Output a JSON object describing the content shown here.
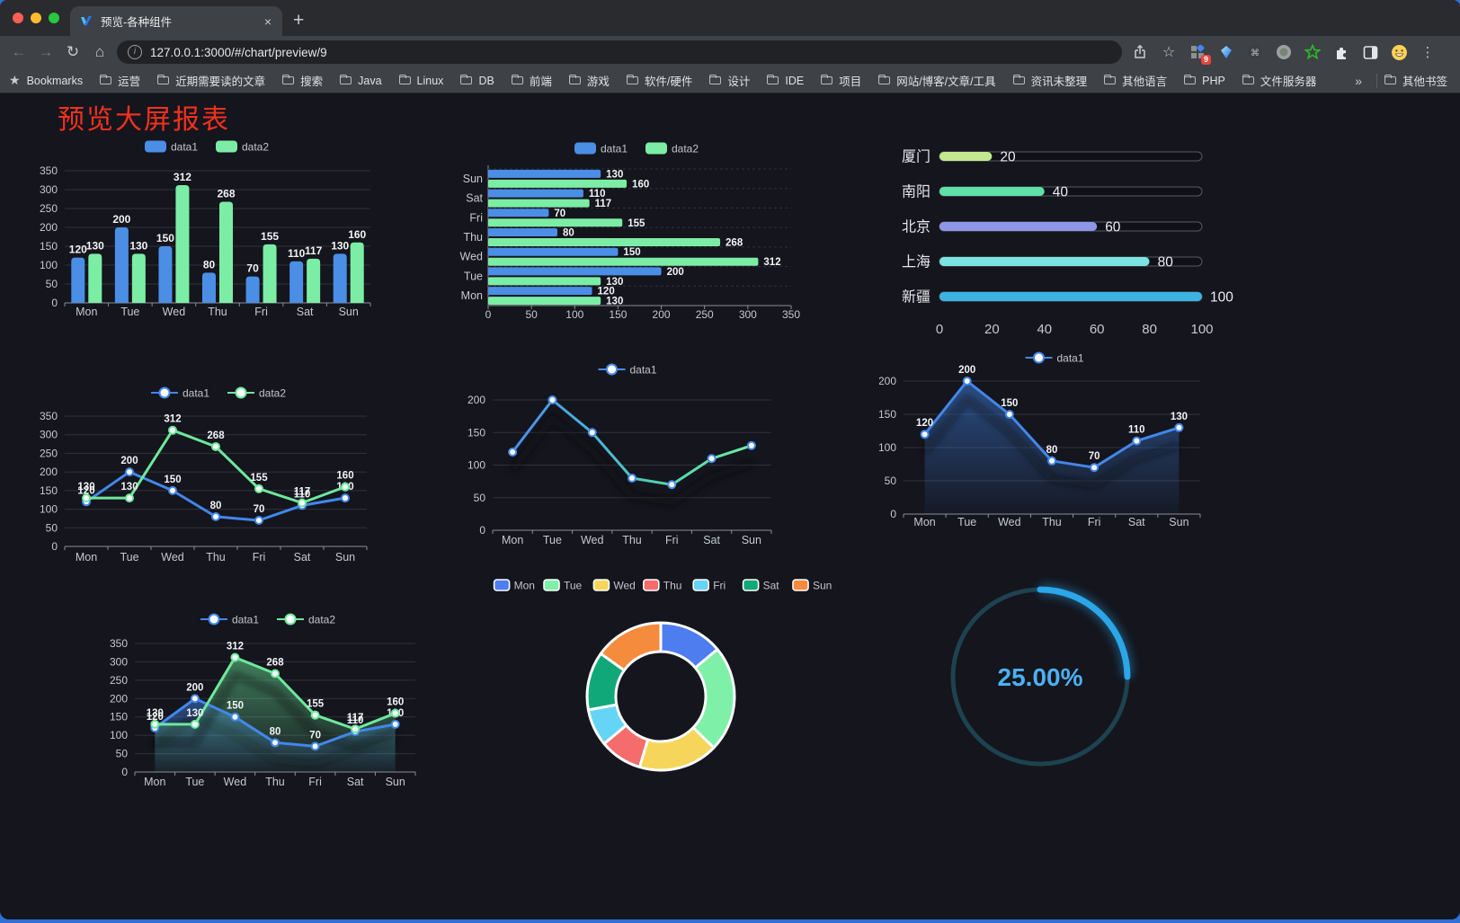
{
  "browser": {
    "tab_title": "预览-各种组件",
    "url": "127.0.0.1:3000/#/chart/preview/9",
    "new_tab_glyph": "+",
    "close_glyph": "×",
    "extension_badge": "9",
    "bookmarks_label": "Bookmarks",
    "bookmarks": [
      "运营",
      "近期需要读的文章",
      "搜索",
      "Java",
      "Linux",
      "DB",
      "前端",
      "游戏",
      "软件/硬件",
      "设计",
      "IDE",
      "项目",
      "网站/博客/文章/工具",
      "资讯未整理",
      "其他语言",
      "PHP",
      "文件服务器"
    ],
    "bookmarks_overflow": "»",
    "other_bookmarks": "其他书签"
  },
  "page": {
    "title": "预览大屏报表"
  },
  "style": {
    "page_bg": "#14151d",
    "title_red": "#f3311c",
    "grid": "#30333c",
    "axis": "#8b9099",
    "tick": "#c6c9cf",
    "label": "#f2f3f5",
    "legend_text": "#c3c6cc",
    "blue": "#4b8ee6",
    "green": "#7ceda5"
  },
  "chart_data": [
    {
      "id": "bar-grouped",
      "type": "bar",
      "categories": [
        "Mon",
        "Tue",
        "Wed",
        "Thu",
        "Fri",
        "Sat",
        "Sun"
      ],
      "series": [
        {
          "name": "data1",
          "color": "#4b8ee6",
          "values": [
            120,
            200,
            150,
            80,
            70,
            110,
            130
          ]
        },
        {
          "name": "data2",
          "color": "#7ceda5",
          "values": [
            130,
            130,
            312,
            268,
            155,
            117,
            160
          ]
        }
      ],
      "ylim": [
        0,
        350
      ],
      "ystep": 50,
      "legend_position": "top",
      "grid": true
    },
    {
      "id": "bar-horizontal",
      "type": "bar",
      "orientation": "horizontal",
      "categories": [
        "Mon",
        "Tue",
        "Wed",
        "Thu",
        "Fri",
        "Sat",
        "Sun"
      ],
      "category_order": "bottom-to-top",
      "series": [
        {
          "name": "data1",
          "color": "#4b8ee6",
          "values": [
            120,
            200,
            150,
            80,
            70,
            110,
            130
          ]
        },
        {
          "name": "data2",
          "color": "#7ceda5",
          "values": [
            130,
            130,
            312,
            268,
            155,
            117,
            160
          ]
        }
      ],
      "xlim": [
        0,
        350
      ],
      "xstep": 50,
      "legend_position": "top"
    },
    {
      "id": "capsule-progress",
      "type": "bar",
      "orientation": "horizontal",
      "categories": [
        "厦门",
        "南阳",
        "北京",
        "上海",
        "新疆"
      ],
      "values": [
        20,
        40,
        60,
        80,
        100
      ],
      "bar_colors": [
        "#c3e88d",
        "#5fe0a8",
        "#8e96e8",
        "#7de3e0",
        "#3db3e3"
      ],
      "xlim": [
        0,
        100
      ],
      "xticks": [
        0,
        20,
        40,
        60,
        80,
        100
      ]
    },
    {
      "id": "line-two-series",
      "type": "line",
      "categories": [
        "Mon",
        "Tue",
        "Wed",
        "Thu",
        "Fri",
        "Sat",
        "Sun"
      ],
      "series": [
        {
          "name": "data1",
          "color": "#4287ec",
          "values": [
            120,
            200,
            150,
            80,
            70,
            110,
            130
          ]
        },
        {
          "name": "data2",
          "color": "#6ee89c",
          "values": [
            130,
            130,
            312,
            268,
            155,
            117,
            160
          ]
        }
      ],
      "ylim": [
        0,
        350
      ],
      "ystep": 50,
      "show_labels": true,
      "markers": "white-filled"
    },
    {
      "id": "line-gradient",
      "type": "line",
      "categories": [
        "Mon",
        "Tue",
        "Wed",
        "Thu",
        "Fri",
        "Sat",
        "Sun"
      ],
      "series": [
        {
          "name": "data1",
          "color_gradient": [
            "#4a8cf0",
            "#48b4dc",
            "#55d8a8",
            "#6ceea6"
          ],
          "marker_color": "#4a8cf0",
          "values": [
            120,
            200,
            150,
            80,
            70,
            110,
            130
          ]
        }
      ],
      "ylim": [
        0,
        200
      ],
      "ystep": 50,
      "show_labels": false,
      "shadow": true
    },
    {
      "id": "line-area",
      "type": "area",
      "categories": [
        "Mon",
        "Tue",
        "Wed",
        "Thu",
        "Fri",
        "Sat",
        "Sun"
      ],
      "series": [
        {
          "name": "data1",
          "color": "#4287ec",
          "values": [
            120,
            200,
            150,
            80,
            70,
            110,
            130
          ]
        }
      ],
      "ylim": [
        0,
        200
      ],
      "ystep": 50,
      "show_labels": true,
      "shadow": true
    },
    {
      "id": "line-two-series-area",
      "type": "area",
      "categories": [
        "Mon",
        "Tue",
        "Wed",
        "Thu",
        "Fri",
        "Sat",
        "Sun"
      ],
      "series": [
        {
          "name": "data1",
          "color": "#4287ec",
          "values": [
            120,
            200,
            150,
            80,
            70,
            110,
            130
          ]
        },
        {
          "name": "data2",
          "color": "#6ee89c",
          "values": [
            130,
            130,
            312,
            268,
            155,
            117,
            160
          ]
        }
      ],
      "ylim": [
        0,
        350
      ],
      "ystep": 50,
      "show_labels": true,
      "shadow": true
    },
    {
      "id": "donut",
      "type": "pie",
      "inner_radius": "60%",
      "categories": [
        "Mon",
        "Tue",
        "Wed",
        "Thu",
        "Fri",
        "Sat",
        "Sun"
      ],
      "values": [
        120,
        200,
        150,
        80,
        70,
        110,
        130
      ],
      "colors": [
        "#4e7df0",
        "#7ef0a8",
        "#f5d65a",
        "#f56c6c",
        "#66d4f5",
        "#10a878",
        "#f58b3d"
      ],
      "border": "#ffffff",
      "legend_position": "top"
    },
    {
      "id": "gauge",
      "type": "gauge",
      "value": 25,
      "max": 100,
      "label": "25.00%",
      "color": "#2ba6e8",
      "track_color": "#1d4250",
      "text_color": "#4cb0f2"
    }
  ]
}
